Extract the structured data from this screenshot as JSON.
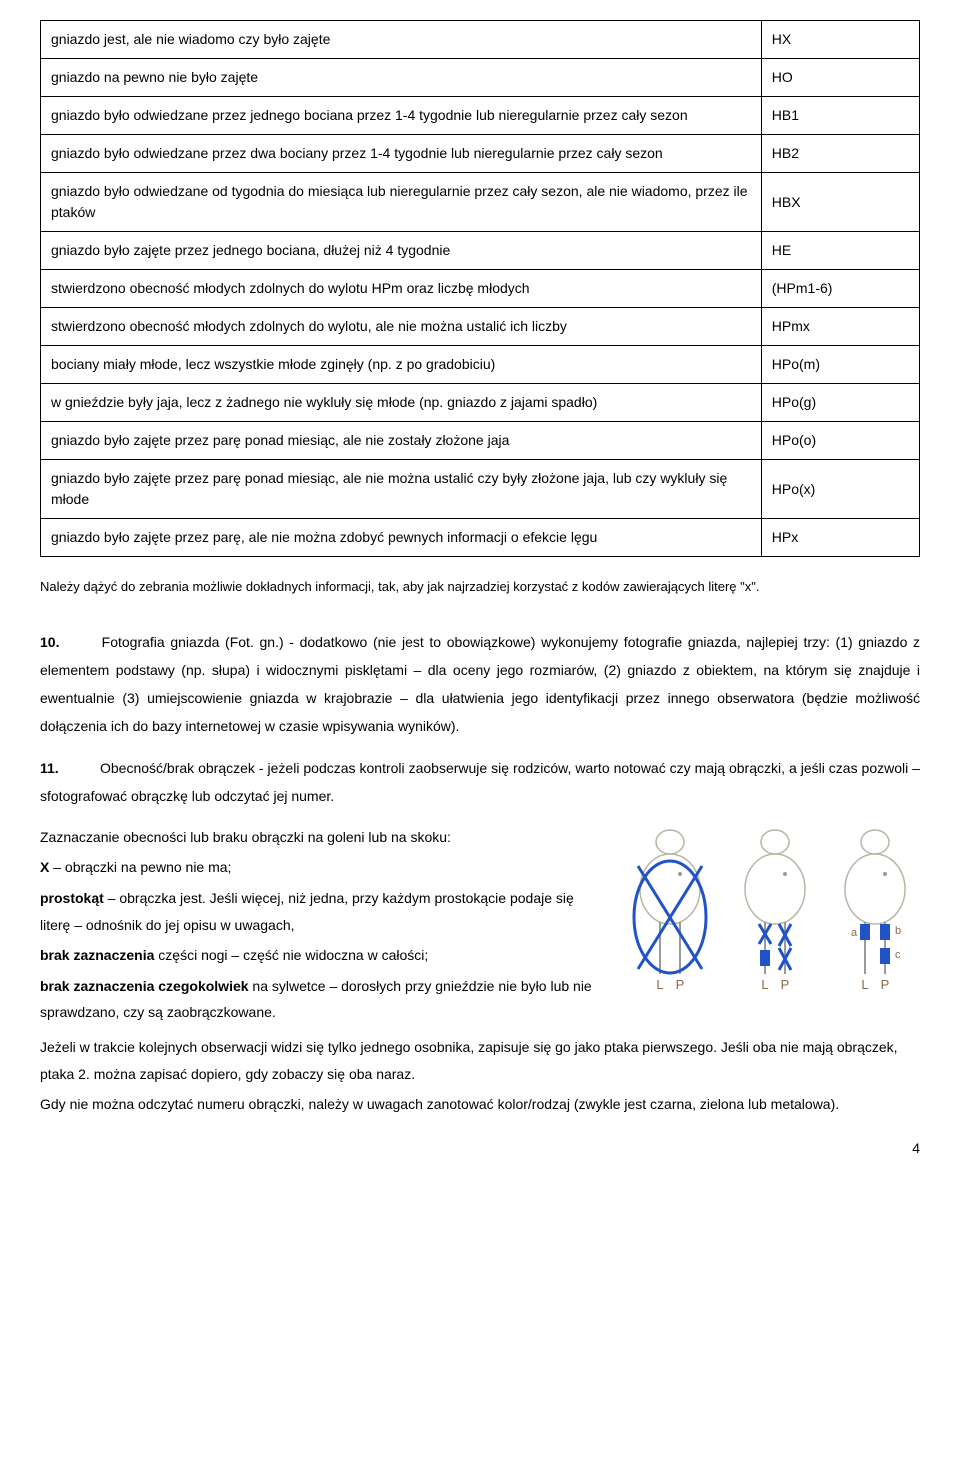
{
  "table_rows": [
    {
      "desc": "gniazdo jest, ale nie wiadomo czy było zajęte",
      "code": "HX"
    },
    {
      "desc": "gniazdo na pewno nie było zajęte",
      "code": "HO"
    },
    {
      "desc": "gniazdo było odwiedzane przez jednego bociana przez 1-4 tygodnie lub nieregularnie przez cały sezon",
      "code": "HB1"
    },
    {
      "desc": "gniazdo było odwiedzane przez dwa bociany przez 1-4 tygodnie lub nieregularnie przez cały sezon",
      "code": "HB2"
    },
    {
      "desc": "gniazdo było odwiedzane od tygodnia do miesiąca lub nieregularnie przez cały sezon, ale nie wiadomo, przez ile ptaków",
      "code": "HBX"
    },
    {
      "desc": "gniazdo było zajęte przez jednego bociana, dłużej niż 4 tygodnie",
      "code": "HE"
    },
    {
      "desc": "stwierdzono obecność młodych zdolnych do wylotu HPm oraz liczbę młodych",
      "code": "(HPm1-6)"
    },
    {
      "desc": "stwierdzono obecność młodych zdolnych do wylotu, ale nie można ustalić ich liczby",
      "code": "HPmx"
    },
    {
      "desc": "bociany miały młode, lecz wszystkie młode zginęły (np. z po gradobiciu)",
      "code": "HPo(m)"
    },
    {
      "desc": "w gnieździe były jaja, lecz z żadnego nie wykluły się młode (np. gniazdo z jajami spadło)",
      "code": "HPo(g)"
    },
    {
      "desc": "gniazdo było zajęte przez parę ponad miesiąc, ale nie zostały złożone jaja",
      "code": "HPo(o)"
    },
    {
      "desc": "gniazdo było zajęte przez parę ponad miesiąc, ale nie można ustalić czy były złożone jaja, lub czy wykluły się młode",
      "code": "HPo(x)"
    },
    {
      "desc": "gniazdo było zajęte przez parę, ale nie można zdobyć pewnych informacji o efekcie lęgu",
      "code": "HPx"
    }
  ],
  "note_text": "Należy dążyć do zebrania możliwie dokładnych informacji, tak, aby jak najrzadziej korzystać z kodów zawierających literę \"x\".",
  "section10": {
    "num": "10.",
    "text": "Fotografia gniazda (Fot. gn.) - dodatkowo (nie jest to obowiązkowe) wykonujemy fotografie gniazda, najlepiej trzy: (1) gniazdo z elementem podstawy (np. słupa) i widocznymi pisklętami – dla oceny jego rozmiarów, (2) gniazdo z obiektem, na którym się znajduje i ewentualnie (3) umiejscowienie gniazda w krajobrazie – dla ułatwienia jego identyfikacji przez innego obserwatora (będzie możliwość dołączenia ich do bazy internetowej w czasie wpisywania wyników)."
  },
  "section11": {
    "num": "11.",
    "intro": "Obecność/brak obrączek - jeżeli podczas kontroli zaobserwuje się rodziców, warto notować czy mają obrączki, a jeśli czas pozwoli – sfotografować obrączkę lub odczytać jej numer.",
    "legend_header": "Zaznaczanie obecności lub braku obrączki na goleni lub na skoku:",
    "line_x_bold": "X",
    "line_x_rest": " – obrączki na pewno nie ma;",
    "line_rect_bold": "prostokąt",
    "line_rect_rest": " – obrączka jest. Jeśli więcej, niż jedna, przy każdym prostokącie podaje się literę – odnośnik do jej opisu w uwagach,",
    "line_blank_bold": "brak zaznaczenia",
    "line_blank_rest": " części nogi – część nie widoczna w całości;",
    "line_none_bold": "brak zaznaczenia czegokolwiek",
    "line_none_rest": " na sylwetce – dorosłych przy gnieździe nie było lub nie sprawdzano, czy są zaobrączkowane.",
    "para_single": "Jeżeli w trakcie kolejnych obserwacji widzi się tylko jednego osobnika, zapisuje się go jako ptaka pierwszego. Jeśli oba nie mają obrączek, ptaka 2. można zapisać dopiero, gdy zobaczy się oba naraz.",
    "para_color": "Gdy nie można  odczytać numeru obrączki, należy w uwagach zanotować kolor/rodzaj (zwykle jest czarna, zielona lub metalowa)."
  },
  "diagram": {
    "letters": {
      "a": "a",
      "b": "b",
      "c": "c"
    },
    "leg_labels": {
      "L": "L",
      "P": "P"
    },
    "colors": {
      "blue": "#2152c8",
      "brown": "#8a6a4a",
      "body_line": "#b8b6a5",
      "grey": "#9a9a9a"
    }
  },
  "page_number": "4"
}
